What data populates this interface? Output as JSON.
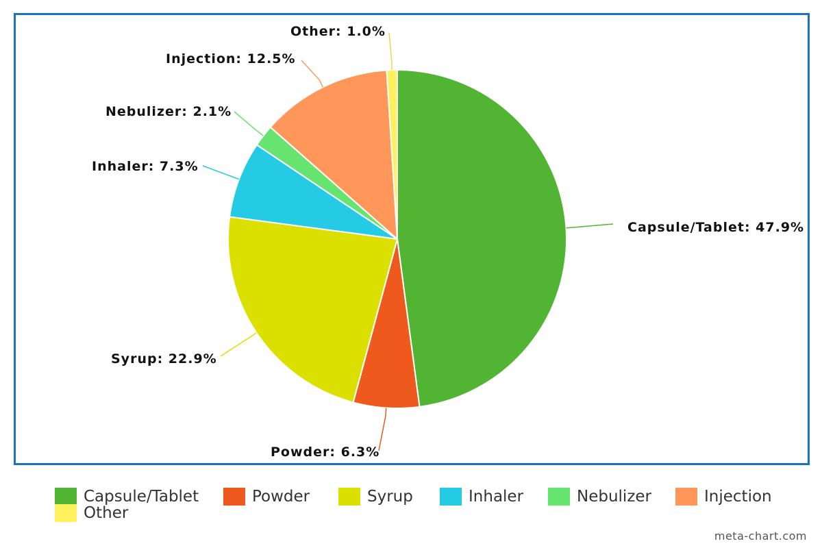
{
  "chart_data": {
    "type": "pie",
    "slices": [
      {
        "name": "Capsule/Tablet",
        "value": 47.9,
        "label": "Capsule/Tablet: 47.9%",
        "color": "#52b433"
      },
      {
        "name": "Powder",
        "value": 6.3,
        "label": "Powder: 6.3%",
        "color": "#ee5a1e"
      },
      {
        "name": "Syrup",
        "value": 22.9,
        "label": "Syrup: 22.9%",
        "color": "#dce000"
      },
      {
        "name": "Inhaler",
        "value": 7.3,
        "label": "Inhaler: 7.3%",
        "color": "#25cbe5"
      },
      {
        "name": "Nebulizer",
        "value": 2.1,
        "label": "Nebulizer: 2.1%",
        "color": "#66e46f"
      },
      {
        "name": "Injection",
        "value": 12.5,
        "label": "Injection: 12.5%",
        "color": "#ff975a"
      },
      {
        "name": "Other",
        "value": 1.0,
        "label": "Other: 1.0%",
        "color": "#fff05e"
      }
    ],
    "legend_position": "bottom",
    "border_color": "#1a73be"
  },
  "watermark": "meta-chart.com"
}
